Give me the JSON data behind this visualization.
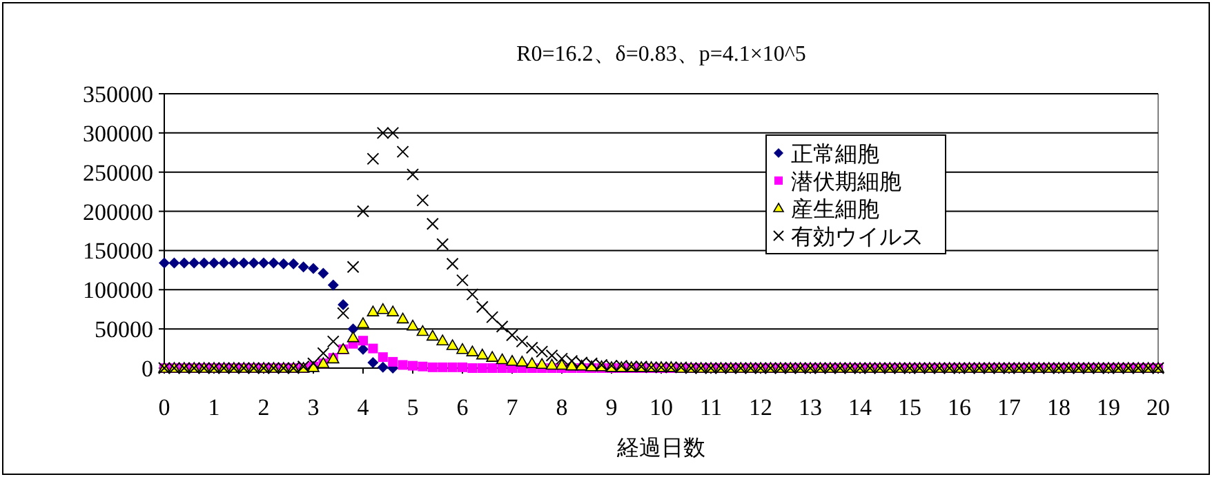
{
  "chart_data": {
    "type": "scatter",
    "title": "R0=16.2、δ=0.83、p=4.1×10^5",
    "xlabel": "経過日数",
    "x": [
      0,
      0.2,
      0.4,
      0.6,
      0.8,
      1,
      1.2,
      1.4,
      1.6,
      1.8,
      2,
      2.2,
      2.4,
      2.6,
      2.8,
      3,
      3.2,
      3.4,
      3.6,
      3.8,
      4,
      4.2,
      4.4,
      4.6,
      4.8,
      5,
      5.2,
      5.4,
      5.6,
      5.8,
      6,
      6.2,
      6.4,
      6.6,
      6.8,
      7,
      7.2,
      7.4,
      7.6,
      7.8,
      8,
      8.2,
      8.4,
      8.6,
      8.8,
      9,
      9.2,
      9.4,
      9.6,
      9.8,
      10,
      10.2,
      10.4,
      10.6,
      10.8,
      11,
      11.2,
      11.4,
      11.6,
      11.8,
      12,
      12.2,
      12.4,
      12.6,
      12.8,
      13,
      13.2,
      13.4,
      13.6,
      13.8,
      14,
      14.2,
      14.4,
      14.6,
      14.8,
      15,
      15.2,
      15.4,
      15.6,
      15.8,
      16,
      16.2,
      16.4,
      16.6,
      16.8,
      17,
      17.2,
      17.4,
      17.6,
      17.8,
      18,
      18.2,
      18.4,
      18.6,
      18.8,
      19,
      19.2,
      19.4,
      19.6,
      19.8,
      20
    ],
    "series": [
      {
        "name": "正常細胞",
        "color": "#000080",
        "marker": "diamond",
        "values": [
          134000,
          134000,
          134000,
          134000,
          134000,
          134000,
          134000,
          134000,
          134000,
          134000,
          134000,
          134000,
          133000,
          133000,
          129000,
          127000,
          121000,
          106000,
          81000,
          50000,
          24000,
          7000,
          1000,
          0,
          null,
          null,
          null,
          null,
          null,
          null,
          null,
          null,
          null,
          null,
          null,
          null,
          null,
          null,
          null,
          null,
          null,
          null,
          null,
          null,
          null,
          null,
          null,
          null,
          null,
          null,
          null,
          null,
          null,
          null,
          null,
          null,
          null,
          null,
          null,
          null,
          null,
          null,
          null,
          null,
          null,
          null,
          null,
          null,
          null,
          null,
          null,
          null,
          null,
          null,
          null,
          null,
          null,
          null,
          null,
          null,
          null,
          null,
          null,
          null,
          null,
          null,
          null,
          null,
          null,
          null,
          null,
          null,
          null,
          null,
          null,
          null,
          null,
          null,
          null,
          null,
          null
        ]
      },
      {
        "name": "潜伏期細胞",
        "color": "#ff00ff",
        "marker": "square",
        "values": [
          0,
          0,
          0,
          0,
          0,
          0,
          0,
          0,
          0,
          0,
          0,
          0,
          0,
          0,
          0,
          2000,
          6000,
          13000,
          24000,
          31000,
          35000,
          25000,
          14000,
          8000,
          4000,
          3000,
          2000,
          1000,
          1000,
          1000,
          1000,
          0,
          0,
          0,
          0,
          0,
          0,
          0,
          0,
          0,
          0,
          0,
          0,
          0,
          0,
          0,
          0,
          0,
          0,
          0,
          0,
          0,
          0,
          0,
          0,
          0,
          0,
          0,
          0,
          0,
          0,
          0,
          0,
          0,
          0,
          0,
          0,
          0,
          0,
          0,
          0,
          0,
          0,
          0,
          0,
          0,
          0,
          0,
          0,
          0,
          0,
          0,
          0,
          0,
          0,
          0,
          0,
          0,
          0,
          0,
          0,
          0,
          0,
          0,
          0,
          0,
          0,
          0,
          0,
          0,
          0
        ]
      },
      {
        "name": "産生細胞",
        "color": "#ffff00",
        "marker": "triangle",
        "values": [
          0,
          0,
          0,
          0,
          0,
          0,
          0,
          0,
          0,
          0,
          0,
          0,
          0,
          0,
          0,
          1000,
          6000,
          12000,
          24000,
          39000,
          57000,
          72000,
          75000,
          72000,
          63000,
          54000,
          47000,
          41000,
          35000,
          29000,
          24000,
          21000,
          17000,
          14000,
          11000,
          9000,
          8000,
          6000,
          5000,
          4000,
          4000,
          3000,
          3000,
          2000,
          2000,
          1000,
          1000,
          1000,
          1000,
          1000,
          1000,
          1000,
          0,
          0,
          0,
          0,
          0,
          0,
          0,
          0,
          0,
          0,
          0,
          0,
          0,
          0,
          0,
          0,
          0,
          0,
          0,
          0,
          0,
          0,
          0,
          0,
          0,
          0,
          0,
          0,
          0,
          0,
          0,
          0,
          0,
          0,
          0,
          0,
          0,
          0,
          0,
          0,
          0,
          0,
          0,
          0,
          0,
          0,
          0,
          0,
          0
        ]
      },
      {
        "name": "有効ウイルス",
        "color": "#000000",
        "marker": "cross",
        "values": [
          0,
          0,
          0,
          0,
          0,
          0,
          0,
          0,
          0,
          0,
          0,
          0,
          0,
          0,
          2000,
          6000,
          19000,
          34000,
          70000,
          129000,
          200000,
          267000,
          300000,
          300000,
          276000,
          247000,
          214000,
          184000,
          158000,
          133000,
          112000,
          94000,
          78000,
          65000,
          53000,
          42000,
          34000,
          26000,
          21000,
          16000,
          12000,
          9000,
          7000,
          6000,
          4000,
          3000,
          3000,
          2000,
          2000,
          1000,
          1000,
          1000,
          1000,
          0,
          0,
          0,
          0,
          0,
          0,
          0,
          0,
          0,
          0,
          0,
          0,
          0,
          0,
          0,
          0,
          0,
          0,
          0,
          0,
          0,
          0,
          0,
          0,
          0,
          0,
          0,
          0,
          0,
          0,
          0,
          0,
          0,
          0,
          0,
          0,
          0,
          0,
          0,
          0,
          0,
          0,
          0,
          0,
          0,
          0,
          0,
          0
        ]
      }
    ],
    "xlim": [
      0,
      20
    ],
    "xticks": [
      0,
      1,
      2,
      3,
      4,
      5,
      6,
      7,
      8,
      9,
      10,
      11,
      12,
      13,
      14,
      15,
      16,
      17,
      18,
      19,
      20
    ],
    "ylim": [
      0,
      350000
    ],
    "yticks": [
      0,
      50000,
      100000,
      150000,
      200000,
      250000,
      300000,
      350000
    ],
    "grid": "y",
    "legend": "top right"
  }
}
